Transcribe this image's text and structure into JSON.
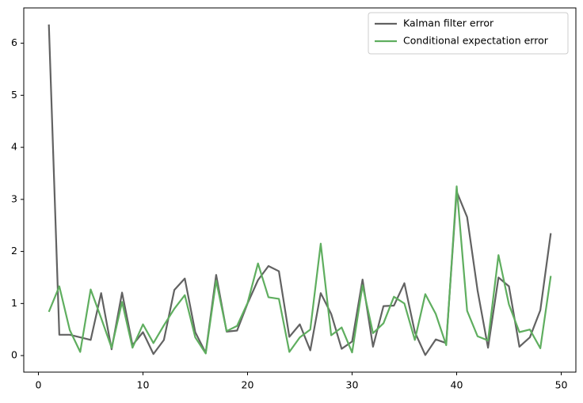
{
  "chart_data": {
    "type": "line",
    "x": [
      1,
      2,
      3,
      4,
      5,
      6,
      7,
      8,
      9,
      10,
      11,
      12,
      13,
      14,
      15,
      16,
      17,
      18,
      19,
      20,
      21,
      22,
      23,
      24,
      25,
      26,
      27,
      28,
      29,
      30,
      31,
      32,
      33,
      34,
      35,
      36,
      37,
      38,
      39,
      40,
      41,
      42,
      43,
      44,
      45,
      46,
      47,
      48,
      49
    ],
    "series": [
      {
        "name": "Kalman filter error",
        "color": "#626262",
        "values": [
          6.36,
          0.4,
          0.4,
          0.35,
          0.3,
          1.2,
          0.12,
          1.21,
          0.2,
          0.45,
          0.03,
          0.3,
          1.26,
          1.48,
          0.45,
          0.05,
          1.55,
          0.46,
          0.48,
          1.0,
          1.45,
          1.72,
          1.62,
          0.36,
          0.6,
          0.1,
          1.2,
          0.8,
          0.13,
          0.27,
          1.46,
          0.17,
          0.95,
          0.96,
          1.39,
          0.45,
          0.01,
          0.31,
          0.24,
          3.15,
          2.66,
          1.25,
          0.15,
          1.5,
          1.33,
          0.17,
          0.35,
          0.87,
          2.35
        ]
      },
      {
        "name": "Conditional expectation error",
        "color": "#5fae5f",
        "values": [
          0.84,
          1.33,
          0.49,
          0.07,
          1.27,
          0.72,
          0.15,
          1.03,
          0.15,
          0.6,
          0.24,
          0.58,
          0.9,
          1.16,
          0.35,
          0.04,
          1.44,
          0.47,
          0.57,
          1.01,
          1.77,
          1.12,
          1.09,
          0.07,
          0.35,
          0.5,
          2.15,
          0.39,
          0.54,
          0.06,
          1.35,
          0.43,
          0.62,
          1.13,
          1.0,
          0.3,
          1.18,
          0.8,
          0.2,
          3.25,
          0.86,
          0.37,
          0.29,
          1.93,
          0.98,
          0.45,
          0.5,
          0.14,
          1.53
        ]
      }
    ],
    "xlim": [
      -1.4,
      51.4
    ],
    "xticks": [
      0,
      10,
      20,
      30,
      40,
      50
    ],
    "ylim": [
      -0.318,
      6.678
    ],
    "yticks": [
      0,
      1,
      2,
      3,
      4,
      5,
      6
    ],
    "legend": "upper right"
  }
}
